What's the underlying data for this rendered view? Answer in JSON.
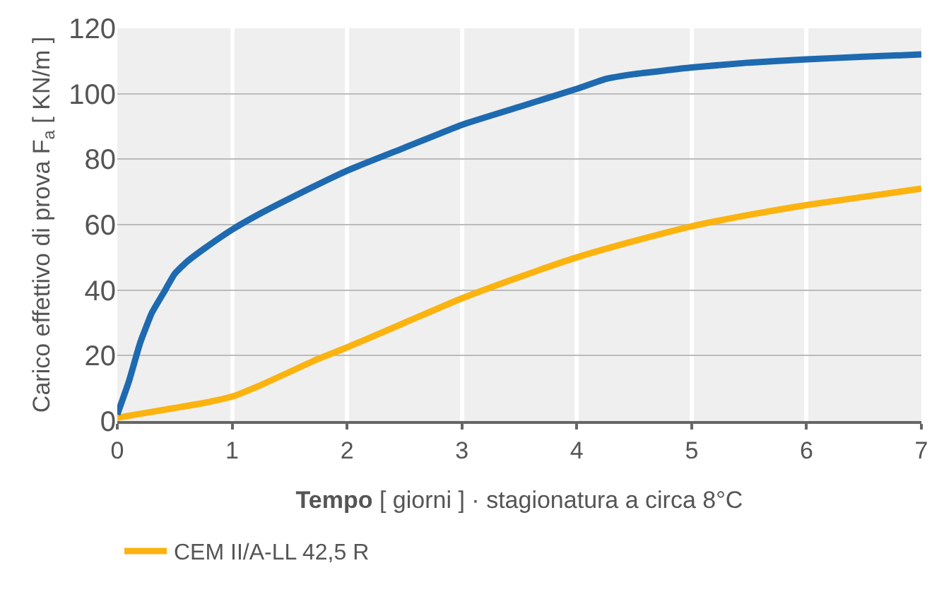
{
  "chart_data": {
    "type": "line",
    "xlabel": "Tempo [ giorni ] · stagionatura a circa 8°C",
    "ylabel": "Carico effettivo di prova F$_{a}$ [ KN/m ]",
    "xlim": [
      0,
      7
    ],
    "ylim": [
      0,
      120
    ],
    "xticks": [
      0,
      1,
      2,
      3,
      4,
      5,
      6,
      7
    ],
    "yticks": [
      0,
      20,
      40,
      60,
      80,
      100,
      120
    ],
    "grid": true,
    "legend": "bottom left",
    "marker": "none",
    "line_style": "solid",
    "series": [
      {
        "name": "CEM II/A-LL 42,5 R",
        "color": "#fbb30f",
        "x": [
          0,
          0.25,
          0.5,
          0.75,
          1,
          1.25,
          1.5,
          1.75,
          2,
          2.5,
          3,
          3.5,
          4,
          4.5,
          5,
          5.5,
          6,
          6.5,
          7
        ],
        "values": [
          1,
          2.5,
          4,
          5.5,
          7.5,
          11,
          15,
          19,
          22.5,
          30,
          37.5,
          44,
          50,
          55,
          59.5,
          63,
          66,
          68.5,
          71
        ]
      },
      {
        "color": "#1e6ab0",
        "x": [
          0,
          0.1,
          0.2,
          0.3,
          0.4,
          0.5,
          0.6,
          0.75,
          1,
          1.25,
          1.5,
          2,
          2.5,
          3,
          3.5,
          4,
          4.25,
          4.5,
          5,
          5.5,
          6,
          6.5,
          7
        ],
        "values": [
          2,
          12,
          24,
          33,
          39,
          45,
          48.5,
          52.5,
          58.5,
          63.5,
          68,
          76.5,
          83.5,
          90.5,
          96,
          101.5,
          104.5,
          106,
          108,
          109.5,
          110.5,
          111.3,
          112
        ]
      }
    ]
  }
}
